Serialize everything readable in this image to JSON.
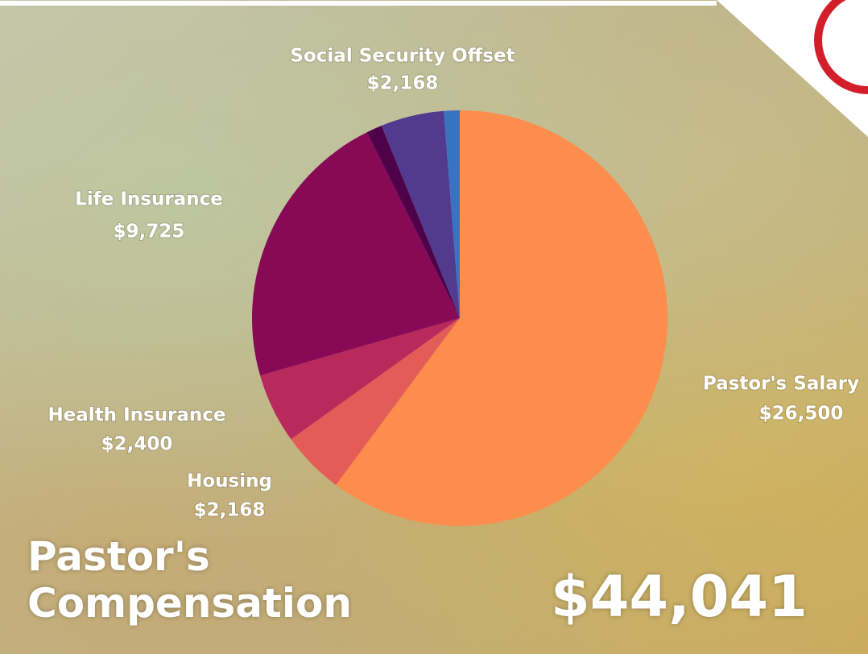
{
  "chart_data": {
    "type": "pie",
    "title": "Pastor's Compensation",
    "total_label": "$44,041",
    "categories": [
      "Pastor's Salary",
      "Housing",
      "Health Insurance",
      "Life Insurance",
      null,
      "Social Security Offset",
      null
    ],
    "values": [
      26500,
      2168,
      2400,
      9725,
      540,
      2168,
      540
    ],
    "value_labels": [
      "$26,500",
      "$2,168",
      "$2,400",
      "$9,725",
      null,
      "$2,168",
      null
    ],
    "colors": [
      "#fd8d4c",
      "#e35c58",
      "#b92a5c",
      "#880a57",
      "#4d0249",
      "#523a8e",
      "#3a72c2"
    ]
  }
}
